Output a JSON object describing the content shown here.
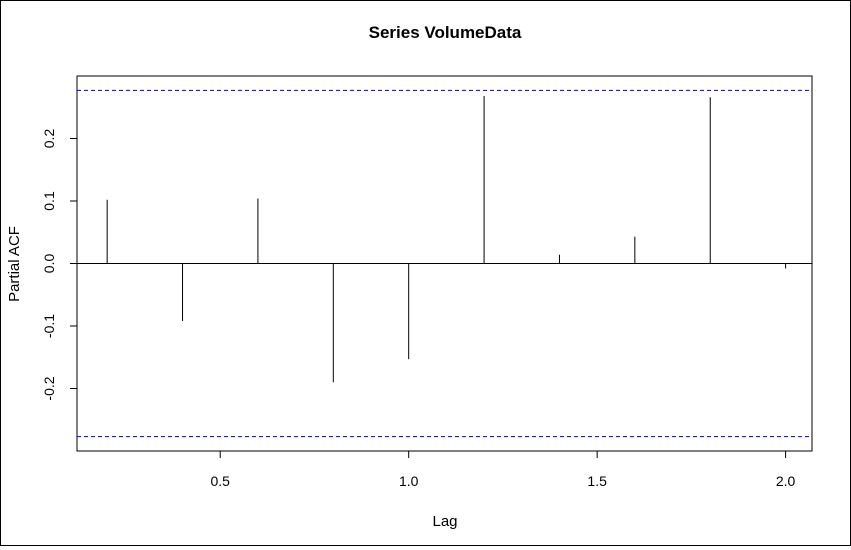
{
  "chart_data": {
    "type": "bar",
    "title": "Series  VolumeData",
    "xlabel": "Lag",
    "ylabel": "Partial ACF",
    "xlim": [
      0.12,
      2.07
    ],
    "ylim": [
      -0.3,
      0.3
    ],
    "x_ticks": [
      {
        "value": 0.5,
        "label": "0.5"
      },
      {
        "value": 1.0,
        "label": "1.0"
      },
      {
        "value": 1.5,
        "label": "1.5"
      },
      {
        "value": 2.0,
        "label": "2.0"
      }
    ],
    "y_ticks": [
      {
        "value": -0.2,
        "label": "-0.2"
      },
      {
        "value": -0.1,
        "label": "-0.1"
      },
      {
        "value": 0.0,
        "label": "0.0"
      },
      {
        "value": 0.1,
        "label": "0.1"
      },
      {
        "value": 0.2,
        "label": "0.2"
      }
    ],
    "x": [
      0.2,
      0.4,
      0.6,
      0.8,
      1.0,
      1.2,
      1.4,
      1.6,
      1.8,
      2.0
    ],
    "values": [
      0.102,
      -0.092,
      0.104,
      -0.19,
      -0.153,
      0.268,
      0.014,
      0.043,
      0.266,
      -0.008
    ],
    "confidence_bound": 0.277,
    "colors": {
      "spike": "#000000",
      "confidence_line": "#0000cc",
      "zero_line": "#000000",
      "axis": "#000000"
    },
    "grid": false,
    "legend": "none"
  }
}
